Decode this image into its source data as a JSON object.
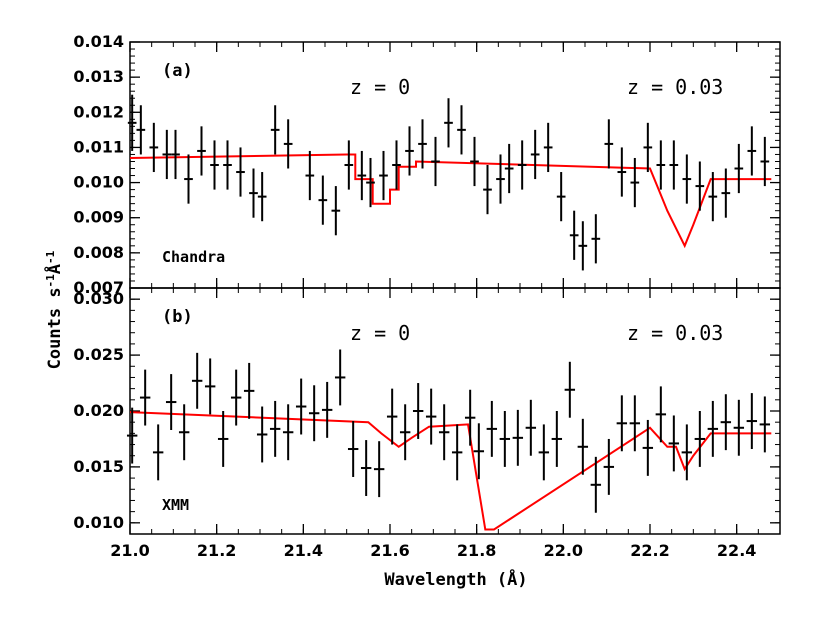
{
  "chart_data": {
    "type": "line",
    "xlabel": "Wavelength (Å)",
    "ylabel": "Counts s⁻¹Å⁻¹",
    "ylabel_parts": {
      "base": "Counts s",
      "exp1": "-1",
      "unit": "Å",
      "exp2": "-1"
    },
    "xlim": [
      21.0,
      22.5
    ],
    "x_ticks": [
      "21.0",
      "21.2",
      "21.4",
      "21.6",
      "21.8",
      "22.0",
      "22.2",
      "22.4"
    ],
    "x_tick_values": [
      21.0,
      21.2,
      21.4,
      21.6,
      21.8,
      22.0,
      22.2,
      22.4
    ],
    "colors": {
      "data": "#000000",
      "model": "#ff0000"
    },
    "panels": [
      {
        "tag": "(a)",
        "instrument": "Chandra",
        "z_labels": [
          "z = 0",
          "z = 0.03"
        ],
        "ylim": [
          0.007,
          0.014
        ],
        "y_ticks": [
          "0.007",
          "0.008",
          "0.009",
          "0.010",
          "0.011",
          "0.012",
          "0.013",
          "0.014"
        ],
        "y_tick_values": [
          0.007,
          0.008,
          0.009,
          0.01,
          0.011,
          0.012,
          0.013,
          0.014
        ],
        "data": {
          "x": [
            21.005,
            21.025,
            21.055,
            21.085,
            21.105,
            21.135,
            21.165,
            21.195,
            21.225,
            21.255,
            21.285,
            21.305,
            21.335,
            21.365,
            21.415,
            21.445,
            21.475,
            21.505,
            21.535,
            21.555,
            21.585,
            21.615,
            21.645,
            21.675,
            21.705,
            21.735,
            21.765,
            21.795,
            21.825,
            21.855,
            21.875,
            21.905,
            21.935,
            21.965,
            21.995,
            22.025,
            22.045,
            22.075,
            22.105,
            22.135,
            22.165,
            22.195,
            22.225,
            22.255,
            22.285,
            22.315,
            22.345,
            22.375,
            22.405,
            22.435,
            22.465
          ],
          "y": [
            0.0117,
            0.0115,
            0.011,
            0.0108,
            0.0108,
            0.0101,
            0.0109,
            0.0105,
            0.0105,
            0.0103,
            0.0097,
            0.0096,
            0.0115,
            0.0111,
            0.0102,
            0.0095,
            0.0092,
            0.0105,
            0.0102,
            0.01,
            0.0102,
            0.0105,
            0.0109,
            0.0111,
            0.0106,
            0.0117,
            0.0115,
            0.0106,
            0.0098,
            0.0101,
            0.0104,
            0.0105,
            0.0108,
            0.011,
            0.0096,
            0.0085,
            0.0082,
            0.0084,
            0.0111,
            0.0103,
            0.01,
            0.011,
            0.0105,
            0.0105,
            0.0101,
            0.0099,
            0.0096,
            0.0097,
            0.0104,
            0.0109,
            0.0106
          ],
          "yerr": [
            0.0008,
            0.0007,
            0.0007,
            0.0007,
            0.0007,
            0.0007,
            0.0007,
            0.0007,
            0.0007,
            0.0007,
            0.0007,
            0.0007,
            0.0007,
            0.0007,
            0.0007,
            0.0007,
            0.0007,
            0.0007,
            0.0007,
            0.0007,
            0.0007,
            0.0007,
            0.0007,
            0.0007,
            0.0007,
            0.0007,
            0.0007,
            0.0007,
            0.0007,
            0.0007,
            0.0007,
            0.0007,
            0.0007,
            0.0007,
            0.0007,
            0.0007,
            0.0007,
            0.0007,
            0.0007,
            0.0007,
            0.0007,
            0.0007,
            0.0007,
            0.0007,
            0.0007,
            0.0007,
            0.0007,
            0.0007,
            0.0007,
            0.0007,
            0.0007
          ],
          "xerr": 0.01
        },
        "model": {
          "x": [
            21.0,
            21.5,
            21.5,
            21.52,
            21.52,
            21.56,
            21.56,
            21.6,
            21.6,
            21.62,
            21.62,
            21.66,
            21.66,
            22.2,
            22.2,
            22.22,
            22.22,
            22.24,
            22.24,
            22.28,
            22.28,
            22.3,
            22.3,
            22.34,
            22.34,
            22.48
          ],
          "y": [
            0.0107,
            0.0108,
            0.0108,
            0.0108,
            0.0101,
            0.0101,
            0.0094,
            0.0094,
            0.0098,
            0.0098,
            0.01045,
            0.01045,
            0.0106,
            0.0104,
            0.0104,
            0.0098,
            0.0098,
            0.0092,
            0.0092,
            0.0082,
            0.0082,
            0.0088,
            0.0088,
            0.0101,
            0.0101,
            0.0101
          ]
        }
      },
      {
        "tag": "(b)",
        "instrument": "XMM",
        "z_labels": [
          "z = 0",
          "z = 0.03"
        ],
        "ylim": [
          0.009,
          0.031
        ],
        "y_ticks": [
          "0.010",
          "0.015",
          "0.020",
          "0.025",
          "0.030"
        ],
        "y_tick_values": [
          0.01,
          0.015,
          0.02,
          0.025,
          0.03
        ],
        "data": {
          "x": [
            21.005,
            21.035,
            21.065,
            21.095,
            21.125,
            21.155,
            21.185,
            21.215,
            21.245,
            21.275,
            21.305,
            21.335,
            21.365,
            21.395,
            21.425,
            21.455,
            21.485,
            21.515,
            21.545,
            21.575,
            21.605,
            21.635,
            21.665,
            21.695,
            21.725,
            21.755,
            21.785,
            21.805,
            21.835,
            21.865,
            21.895,
            21.925,
            21.955,
            21.985,
            22.015,
            22.045,
            22.075,
            22.105,
            22.135,
            22.165,
            22.195,
            22.225,
            22.255,
            22.285,
            22.315,
            22.345,
            22.375,
            22.405,
            22.435,
            22.465
          ],
          "y": [
            0.0178,
            0.0212,
            0.0163,
            0.0208,
            0.0181,
            0.0227,
            0.0222,
            0.0175,
            0.0212,
            0.0218,
            0.0179,
            0.0184,
            0.0181,
            0.0204,
            0.0198,
            0.0201,
            0.023,
            0.0166,
            0.0149,
            0.0148,
            0.0195,
            0.0181,
            0.02,
            0.0195,
            0.0181,
            0.0163,
            0.0194,
            0.0164,
            0.0184,
            0.0175,
            0.0176,
            0.0185,
            0.0163,
            0.0175,
            0.0219,
            0.0168,
            0.0134,
            0.015,
            0.0189,
            0.0189,
            0.0167,
            0.0197,
            0.0171,
            0.0163,
            0.0175,
            0.0184,
            0.019,
            0.0185,
            0.0191,
            0.0188
          ],
          "yerr": [
            0.0025,
            0.0025,
            0.0025,
            0.0025,
            0.0025,
            0.0025,
            0.0025,
            0.0025,
            0.0025,
            0.0025,
            0.0025,
            0.0025,
            0.0025,
            0.0025,
            0.0025,
            0.0025,
            0.0025,
            0.0025,
            0.0025,
            0.0025,
            0.0025,
            0.0025,
            0.0025,
            0.0025,
            0.0025,
            0.0025,
            0.0025,
            0.0025,
            0.0025,
            0.0025,
            0.0025,
            0.0025,
            0.0025,
            0.0025,
            0.0025,
            0.0025,
            0.0025,
            0.0025,
            0.0025,
            0.0025,
            0.0025,
            0.0025,
            0.0025,
            0.0025,
            0.0025,
            0.0025,
            0.0025,
            0.0025,
            0.0025,
            0.0025
          ],
          "xerr": 0.012
        },
        "model": {
          "x": [
            21.0,
            21.55,
            21.55,
            21.58,
            21.58,
            21.62,
            21.62,
            21.65,
            21.65,
            21.69,
            21.69,
            21.78,
            21.78,
            21.82,
            21.82,
            21.84,
            21.84,
            22.2,
            22.2,
            22.24,
            22.24,
            22.26,
            22.26,
            22.28,
            22.28,
            22.3,
            22.3,
            22.34,
            22.34,
            22.48
          ],
          "y": [
            0.0199,
            0.019,
            0.019,
            0.018,
            0.018,
            0.0168,
            0.0168,
            0.0176,
            0.0176,
            0.0186,
            0.0186,
            0.0188,
            0.0188,
            0.0094,
            0.0094,
            0.0094,
            0.0094,
            0.0185,
            0.0185,
            0.0168,
            0.0168,
            0.0168,
            0.0168,
            0.0148,
            0.0148,
            0.016,
            0.016,
            0.018,
            0.018,
            0.018
          ]
        }
      }
    ]
  }
}
